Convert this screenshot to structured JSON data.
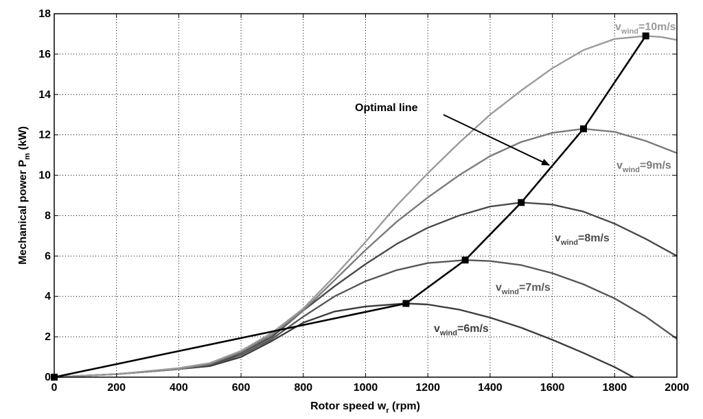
{
  "chart_data": {
    "type": "line",
    "xlabel": "Rotor speed w",
    "xlabel_sub": "r",
    "xlabel_unit": " (rpm)",
    "ylabel": "Mechanical power P",
    "ylabel_sub": "m",
    "ylabel_unit": " (kW)",
    "xlim": [
      0,
      2000
    ],
    "ylim": [
      0,
      18
    ],
    "xticks": [
      0,
      200,
      400,
      600,
      800,
      1000,
      1200,
      1400,
      1600,
      1800,
      2000
    ],
    "yticks": [
      0,
      2,
      4,
      6,
      8,
      10,
      12,
      14,
      16,
      18
    ],
    "grid": true,
    "series": [
      {
        "name": "v_wind=6m/s",
        "label_main": "v",
        "label_sub": "wind",
        "label_tail": "=6m/s",
        "color": "#3d3d3d",
        "points": [
          [
            0,
            0
          ],
          [
            200,
            0.15
          ],
          [
            400,
            0.4
          ],
          [
            500,
            0.55
          ],
          [
            600,
            1.0
          ],
          [
            700,
            1.8
          ],
          [
            800,
            2.7
          ],
          [
            900,
            3.25
          ],
          [
            1000,
            3.5
          ],
          [
            1130,
            3.65
          ],
          [
            1200,
            3.6
          ],
          [
            1300,
            3.35
          ],
          [
            1400,
            2.95
          ],
          [
            1500,
            2.45
          ],
          [
            1600,
            1.85
          ],
          [
            1700,
            1.2
          ],
          [
            1800,
            0.5
          ],
          [
            1860,
            0
          ]
        ]
      },
      {
        "name": "v_wind=7m/s",
        "label_main": "v",
        "label_sub": "wind",
        "label_tail": "=7m/s",
        "color": "#575757",
        "points": [
          [
            0,
            0
          ],
          [
            200,
            0.15
          ],
          [
            400,
            0.4
          ],
          [
            500,
            0.6
          ],
          [
            600,
            1.1
          ],
          [
            700,
            1.9
          ],
          [
            800,
            3.0
          ],
          [
            900,
            4.0
          ],
          [
            1000,
            4.75
          ],
          [
            1100,
            5.3
          ],
          [
            1200,
            5.65
          ],
          [
            1320,
            5.8
          ],
          [
            1400,
            5.75
          ],
          [
            1500,
            5.55
          ],
          [
            1600,
            5.15
          ],
          [
            1700,
            4.6
          ],
          [
            1800,
            3.9
          ],
          [
            1900,
            3.0
          ],
          [
            2000,
            1.9
          ]
        ]
      },
      {
        "name": "v_wind=8m/s",
        "label_main": "v",
        "label_sub": "wind",
        "label_tail": "=8m/s",
        "color": "#4a4a4a",
        "points": [
          [
            0,
            0
          ],
          [
            200,
            0.15
          ],
          [
            400,
            0.4
          ],
          [
            500,
            0.6
          ],
          [
            600,
            1.2
          ],
          [
            700,
            2.0
          ],
          [
            800,
            3.3
          ],
          [
            900,
            4.5
          ],
          [
            1000,
            5.6
          ],
          [
            1100,
            6.6
          ],
          [
            1200,
            7.4
          ],
          [
            1300,
            8.0
          ],
          [
            1400,
            8.45
          ],
          [
            1500,
            8.65
          ],
          [
            1600,
            8.55
          ],
          [
            1700,
            8.2
          ],
          [
            1800,
            7.6
          ],
          [
            1900,
            6.85
          ],
          [
            2000,
            6.0
          ]
        ]
      },
      {
        "name": "v_wind=9m/s",
        "label_main": "v",
        "label_sub": "wind",
        "label_tail": "=9m/s",
        "color": "#7a7a7a",
        "points": [
          [
            0,
            0
          ],
          [
            200,
            0.15
          ],
          [
            400,
            0.4
          ],
          [
            500,
            0.65
          ],
          [
            600,
            1.25
          ],
          [
            700,
            2.1
          ],
          [
            800,
            3.3
          ],
          [
            900,
            4.8
          ],
          [
            1000,
            6.3
          ],
          [
            1100,
            7.7
          ],
          [
            1200,
            8.9
          ],
          [
            1300,
            10.0
          ],
          [
            1400,
            10.95
          ],
          [
            1500,
            11.65
          ],
          [
            1600,
            12.1
          ],
          [
            1700,
            12.3
          ],
          [
            1800,
            12.15
          ],
          [
            1900,
            11.7
          ],
          [
            2000,
            11.1
          ]
        ]
      },
      {
        "name": "v_wind=10m/s",
        "label_main": "v",
        "label_sub": "wind",
        "label_tail": "=10m/s",
        "color": "#9a9a9a",
        "points": [
          [
            0,
            0
          ],
          [
            200,
            0.15
          ],
          [
            400,
            0.45
          ],
          [
            500,
            0.7
          ],
          [
            600,
            1.3
          ],
          [
            700,
            2.2
          ],
          [
            800,
            3.4
          ],
          [
            900,
            5.0
          ],
          [
            1000,
            6.7
          ],
          [
            1100,
            8.5
          ],
          [
            1200,
            10.1
          ],
          [
            1300,
            11.6
          ],
          [
            1400,
            13.0
          ],
          [
            1500,
            14.2
          ],
          [
            1600,
            15.3
          ],
          [
            1700,
            16.2
          ],
          [
            1800,
            16.75
          ],
          [
            1900,
            16.9
          ],
          [
            1950,
            16.85
          ],
          [
            2000,
            16.7
          ]
        ]
      },
      {
        "name": "Optimal line",
        "color": "#000000",
        "points": [
          [
            0,
            0
          ],
          [
            1130,
            3.65
          ],
          [
            1320,
            5.8
          ],
          [
            1500,
            8.65
          ],
          [
            1700,
            12.3
          ],
          [
            1900,
            16.9
          ]
        ]
      }
    ],
    "annotations": [
      {
        "text": "Optimal line",
        "arrow_from": [
          1250,
          13.0
        ],
        "arrow_to": [
          1590,
          10.5
        ]
      }
    ]
  }
}
